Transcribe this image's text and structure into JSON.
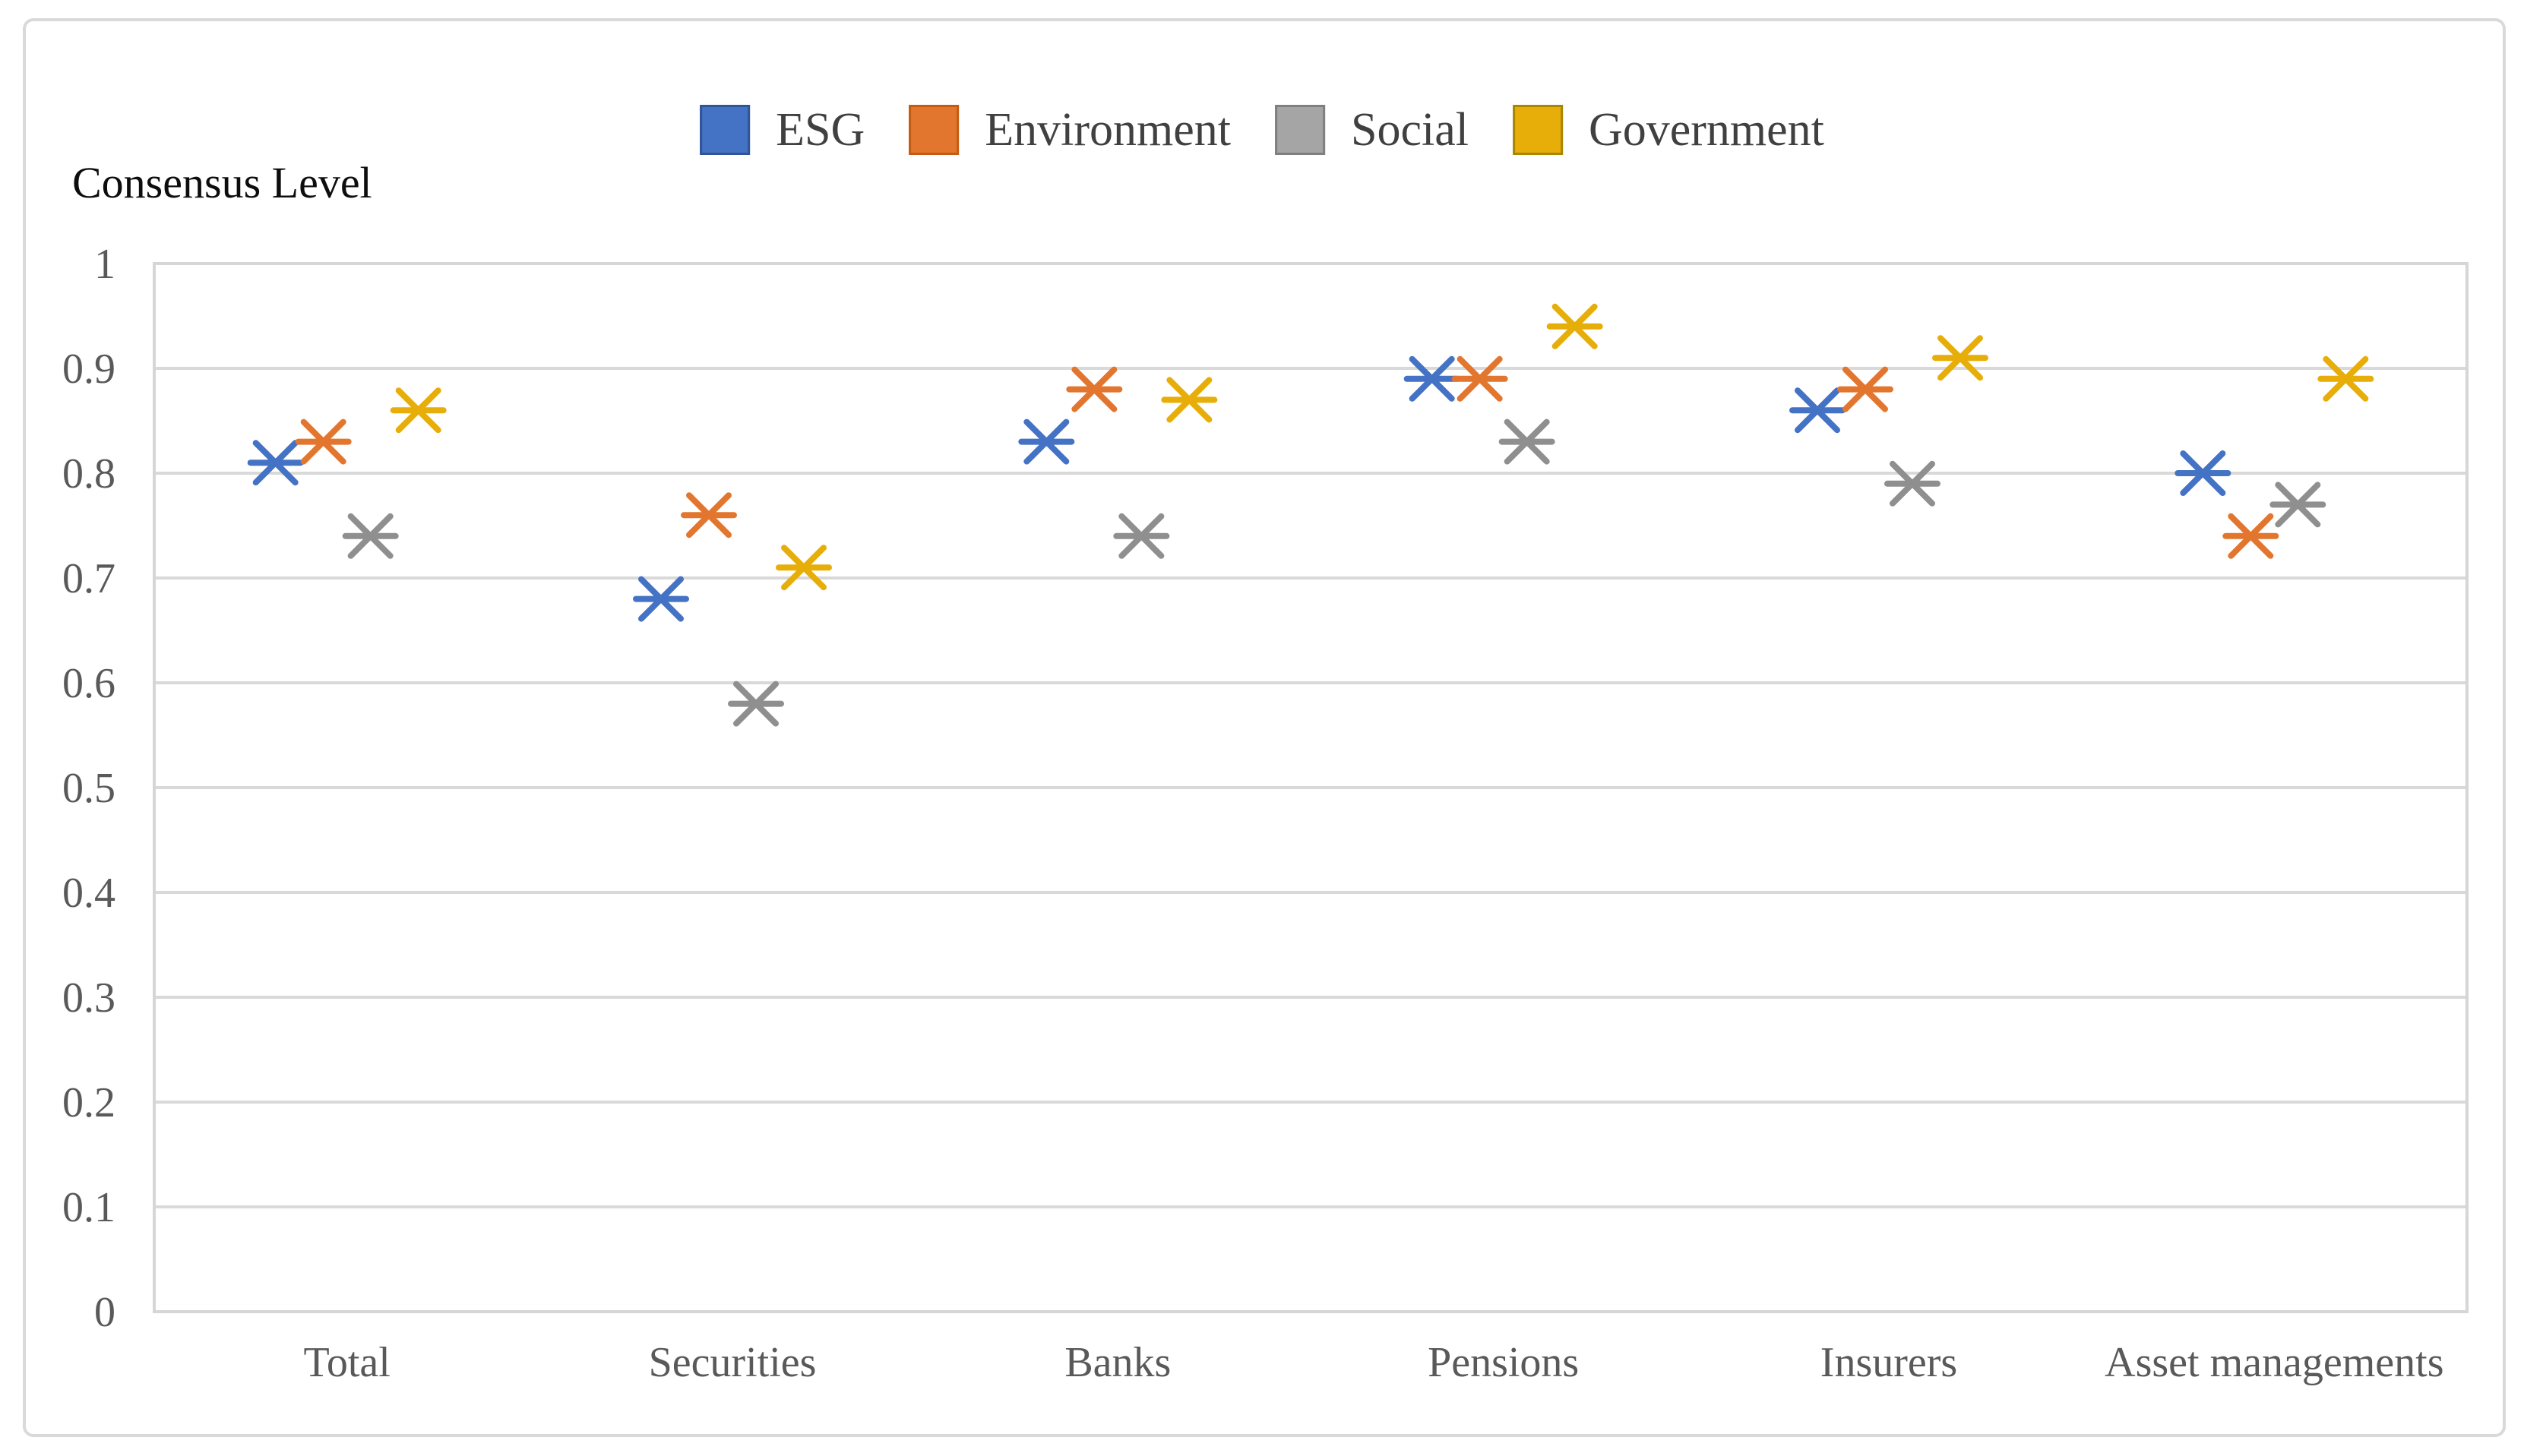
{
  "colors": {
    "background": "#ffffff",
    "figure_border": "#D9D9D9",
    "gridline": "#D9D9D9",
    "plot_border": "#D6D6D6",
    "tick_label": "#595959",
    "category_label": "#595959",
    "legend_text": "#404040",
    "axis_title_text": "#0d0d0d"
  },
  "chart_data": {
    "type": "scatter",
    "title": "",
    "ylabel": "Consensus Level",
    "xlabel": "",
    "ylim": [
      0,
      1
    ],
    "ytick_labels": [
      "1",
      "0.9",
      "0.8",
      "0.7",
      "0.6",
      "0.5",
      "0.4",
      "0.3",
      "0.2",
      "0.1",
      "0"
    ],
    "grid": "horizontal",
    "legend_position": "top-center",
    "marker_style": "six-spoke asterisk (X with horizontal bar)",
    "categories": [
      "Total",
      "Securities",
      "Banks",
      "Pensions",
      "Insurers",
      "Asset managements"
    ],
    "series": [
      {
        "name": "ESG",
        "color": "#4472C4",
        "swatch_border": "#2F5597",
        "values": [
          0.81,
          0.68,
          0.83,
          0.89,
          0.86,
          0.8
        ]
      },
      {
        "name": "Environment",
        "color": "#E3762F",
        "swatch_border": "#C55A11",
        "values": [
          0.83,
          0.76,
          0.88,
          0.89,
          0.88,
          0.74
        ]
      },
      {
        "name": "Social",
        "color": "#8F8F8F",
        "swatch_border": "#7F7F7F",
        "values": [
          0.74,
          0.58,
          0.74,
          0.83,
          0.79,
          0.77
        ]
      },
      {
        "name": "Government",
        "color": "#E7AE09",
        "swatch_border": "#A98600",
        "values": [
          0.86,
          0.71,
          0.87,
          0.94,
          0.91,
          0.89
        ]
      }
    ]
  }
}
